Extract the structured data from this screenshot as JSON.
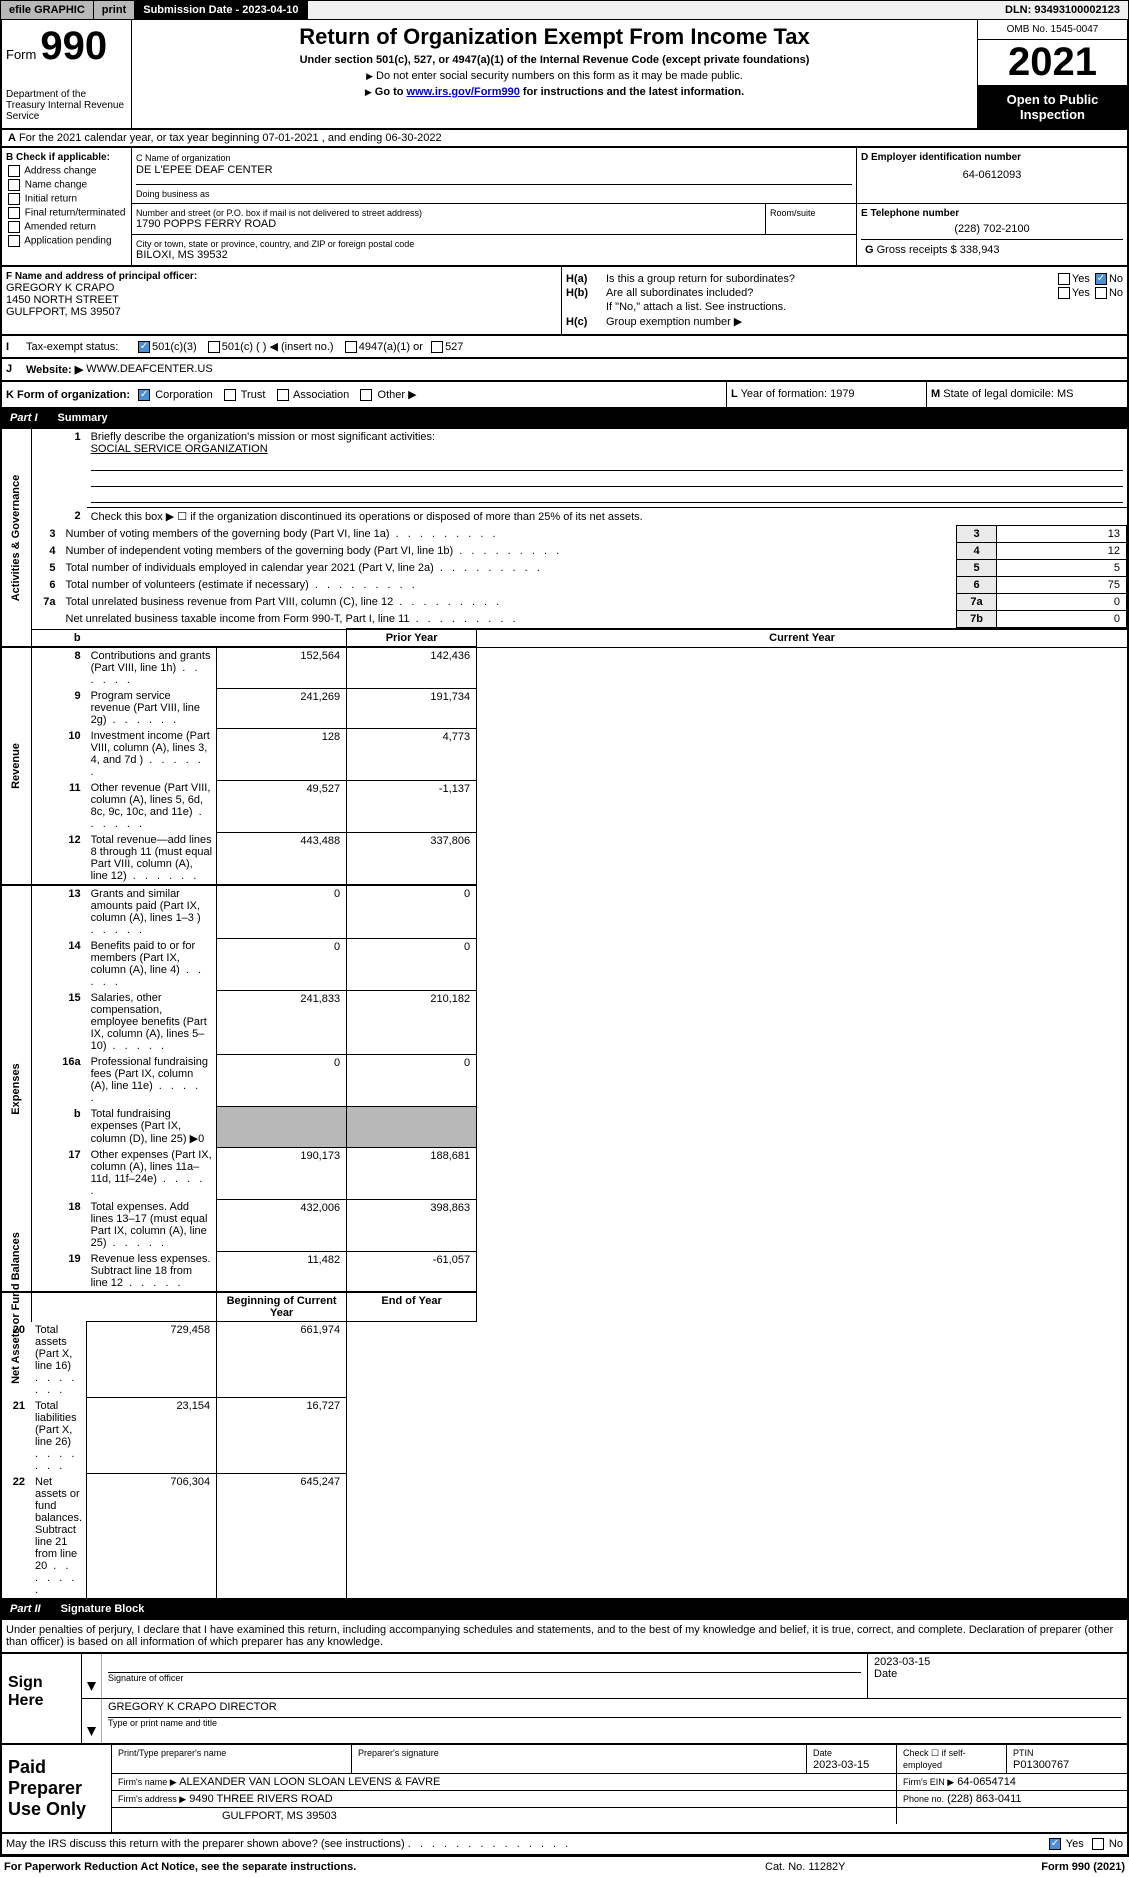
{
  "topbar": {
    "efile": "efile GRAPHIC",
    "print": "print",
    "submission": "Submission Date - 2023-04-10",
    "dln": "DLN: 93493100002123"
  },
  "header": {
    "form_word": "Form",
    "form_num": "990",
    "dept": "Department of the Treasury Internal Revenue Service",
    "title": "Return of Organization Exempt From Income Tax",
    "sub": "Under section 501(c), 527, or 4947(a)(1) of the Internal Revenue Code (except private foundations)",
    "note1": "Do not enter social security numbers on this form as it may be made public.",
    "note2_pre": "Go to ",
    "note2_link": "www.irs.gov/Form990",
    "note2_post": " for instructions and the latest information.",
    "omb": "OMB No. 1545-0047",
    "year": "2021",
    "opento": "Open to Public Inspection"
  },
  "row_a": "For the 2021 calendar year, or tax year beginning 07-01-2021   , and ending 06-30-2022",
  "row_a_prefix": "A",
  "col_b": {
    "header": "B Check if applicable:",
    "items": [
      "Address change",
      "Name change",
      "Initial return",
      "Final return/terminated",
      "Amended return",
      "Application pending"
    ]
  },
  "col_c": {
    "name_lbl": "C Name of organization",
    "name": "DE L'EPEE DEAF CENTER",
    "dba_lbl": "Doing business as",
    "dba": "",
    "addr_lbl": "Number and street (or P.O. box if mail is not delivered to street address)",
    "addr": "1790 POPPS FERRY ROAD",
    "room_lbl": "Room/suite",
    "room": "",
    "city_lbl": "City or town, state or province, country, and ZIP or foreign postal code",
    "city": "BILOXI, MS  39532"
  },
  "col_d": {
    "lbl": "D Employer identification number",
    "val": "64-0612093"
  },
  "col_e": {
    "lbl": "E Telephone number",
    "val": "(228) 702-2100"
  },
  "col_g": {
    "lbl": "G",
    "txt": "Gross receipts $",
    "val": "338,943"
  },
  "col_f": {
    "lbl": "F  Name and address of principal officer:",
    "name": "GREGORY K CRAPO",
    "addr1": "1450 NORTH STREET",
    "addr2": "GULFPORT, MS  39507"
  },
  "col_h": {
    "ha": "Is this a group return for subordinates?",
    "hb": "Are all subordinates included?",
    "hb_note": "If \"No,\" attach a list. See instructions.",
    "hc": "Group exemption number ▶"
  },
  "row_i": {
    "lbl": "Tax-exempt status:",
    "opts": [
      "501(c)(3)",
      "501(c) (  ) ◀ (insert no.)",
      "4947(a)(1) or",
      "527"
    ]
  },
  "row_j": {
    "lbl": "Website: ▶",
    "val": "WWW.DEAFCENTER.US"
  },
  "row_k": {
    "lbl": "K Form of organization:",
    "opts": [
      "Corporation",
      "Trust",
      "Association",
      "Other ▶"
    ]
  },
  "row_l": {
    "lbl": "L",
    "txt": "Year of formation:",
    "val": "1979"
  },
  "row_m": {
    "lbl": "M",
    "txt": "State of legal domicile:",
    "val": "MS"
  },
  "part1": {
    "num": "Part I",
    "title": "Summary"
  },
  "summary": {
    "briefly_lbl": "Briefly describe the organization's mission or most significant activities:",
    "briefly_val": "SOCIAL SERVICE ORGANIZATION",
    "line2": "Check this box ▶ ☐ if the organization discontinued its operations or disposed of more than 25% of its net assets.",
    "pycol": "Prior Year",
    "cycol": "Current Year",
    "bcy": "Beginning of Current Year",
    "eoy": "End of Year",
    "sides": {
      "ag": "Activities & Governance",
      "rev": "Revenue",
      "exp": "Expenses",
      "nab": "Net Assets or Fund Balances"
    },
    "rows_ag": [
      {
        "n": "3",
        "t": "Number of voting members of the governing body (Part VI, line 1a)",
        "box": "3",
        "v": "13"
      },
      {
        "n": "4",
        "t": "Number of independent voting members of the governing body (Part VI, line 1b)",
        "box": "4",
        "v": "12"
      },
      {
        "n": "5",
        "t": "Total number of individuals employed in calendar year 2021 (Part V, line 2a)",
        "box": "5",
        "v": "5"
      },
      {
        "n": "6",
        "t": "Total number of volunteers (estimate if necessary)",
        "box": "6",
        "v": "75"
      },
      {
        "n": "7a",
        "t": "Total unrelated business revenue from Part VIII, column (C), line 12",
        "box": "7a",
        "v": "0"
      },
      {
        "n": "",
        "t": "Net unrelated business taxable income from Form 990-T, Part I, line 11",
        "box": "7b",
        "v": "0"
      }
    ],
    "rows_rev": [
      {
        "n": "8",
        "t": "Contributions and grants (Part VIII, line 1h)",
        "py": "152,564",
        "cy": "142,436"
      },
      {
        "n": "9",
        "t": "Program service revenue (Part VIII, line 2g)",
        "py": "241,269",
        "cy": "191,734"
      },
      {
        "n": "10",
        "t": "Investment income (Part VIII, column (A), lines 3, 4, and 7d )",
        "py": "128",
        "cy": "4,773"
      },
      {
        "n": "11",
        "t": "Other revenue (Part VIII, column (A), lines 5, 6d, 8c, 9c, 10c, and 11e)",
        "py": "49,527",
        "cy": "-1,137"
      },
      {
        "n": "12",
        "t": "Total revenue—add lines 8 through 11 (must equal Part VIII, column (A), line 12)",
        "py": "443,488",
        "cy": "337,806"
      }
    ],
    "rows_exp": [
      {
        "n": "13",
        "t": "Grants and similar amounts paid (Part IX, column (A), lines 1–3 )",
        "py": "0",
        "cy": "0"
      },
      {
        "n": "14",
        "t": "Benefits paid to or for members (Part IX, column (A), line 4)",
        "py": "0",
        "cy": "0"
      },
      {
        "n": "15",
        "t": "Salaries, other compensation, employee benefits (Part IX, column (A), lines 5–10)",
        "py": "241,833",
        "cy": "210,182"
      },
      {
        "n": "16a",
        "t": "Professional fundraising fees (Part IX, column (A), line 11e)",
        "py": "0",
        "cy": "0"
      },
      {
        "n": "b",
        "t": "Total fundraising expenses (Part IX, column (D), line 25) ▶0",
        "py": "",
        "cy": "",
        "shaded": true
      },
      {
        "n": "17",
        "t": "Other expenses (Part IX, column (A), lines 11a–11d, 11f–24e)",
        "py": "190,173",
        "cy": "188,681"
      },
      {
        "n": "18",
        "t": "Total expenses. Add lines 13–17 (must equal Part IX, column (A), line 25)",
        "py": "432,006",
        "cy": "398,863"
      },
      {
        "n": "19",
        "t": "Revenue less expenses. Subtract line 18 from line 12",
        "py": "11,482",
        "cy": "-61,057"
      }
    ],
    "rows_nab": [
      {
        "n": "20",
        "t": "Total assets (Part X, line 16)",
        "py": "729,458",
        "cy": "661,974"
      },
      {
        "n": "21",
        "t": "Total liabilities (Part X, line 26)",
        "py": "23,154",
        "cy": "16,727"
      },
      {
        "n": "22",
        "t": "Net assets or fund balances. Subtract line 21 from line 20",
        "py": "706,304",
        "cy": "645,247"
      }
    ]
  },
  "part2": {
    "num": "Part II",
    "title": "Signature Block"
  },
  "sig_intro": "Under penalties of perjury, I declare that I have examined this return, including accompanying schedules and statements, and to the best of my knowledge and belief, it is true, correct, and complete. Declaration of preparer (other than officer) is based on all information of which preparer has any knowledge.",
  "sign": {
    "here": "Sign Here",
    "sig_of_officer": "Signature of officer",
    "date_lbl": "Date",
    "date": "2023-03-15",
    "name_title": "GREGORY K CRAPO  DIRECTOR",
    "type_name": "Type or print name and title"
  },
  "prep": {
    "title": "Paid Preparer Use Only",
    "r1": {
      "c1": "Print/Type preparer's name",
      "c2": "Preparer's signature",
      "c3": "Date",
      "c3v": "2023-03-15",
      "c4": "Check ☐ if self-employed",
      "c5": "PTIN",
      "c5v": "P01300767"
    },
    "r2": {
      "lbl": "Firm's name   ▶",
      "val": "ALEXANDER VAN LOON SLOAN LEVENS & FAVRE",
      "ein_lbl": "Firm's EIN ▶",
      "ein": "64-0654714"
    },
    "r3": {
      "lbl": "Firm's address ▶",
      "val": "9490 THREE RIVERS ROAD",
      "ph_lbl": "Phone no.",
      "ph": "(228) 863-0411"
    },
    "r4": {
      "val": "GULFPORT, MS  39503"
    }
  },
  "may_irs": "May the IRS discuss this return with the preparer shown above? (see instructions)",
  "footer": {
    "left": "For Paperwork Reduction Act Notice, see the separate instructions.",
    "mid": "Cat. No. 11282Y",
    "right_pre": "Form ",
    "right_bold": "990",
    "right_post": " (2021)"
  }
}
